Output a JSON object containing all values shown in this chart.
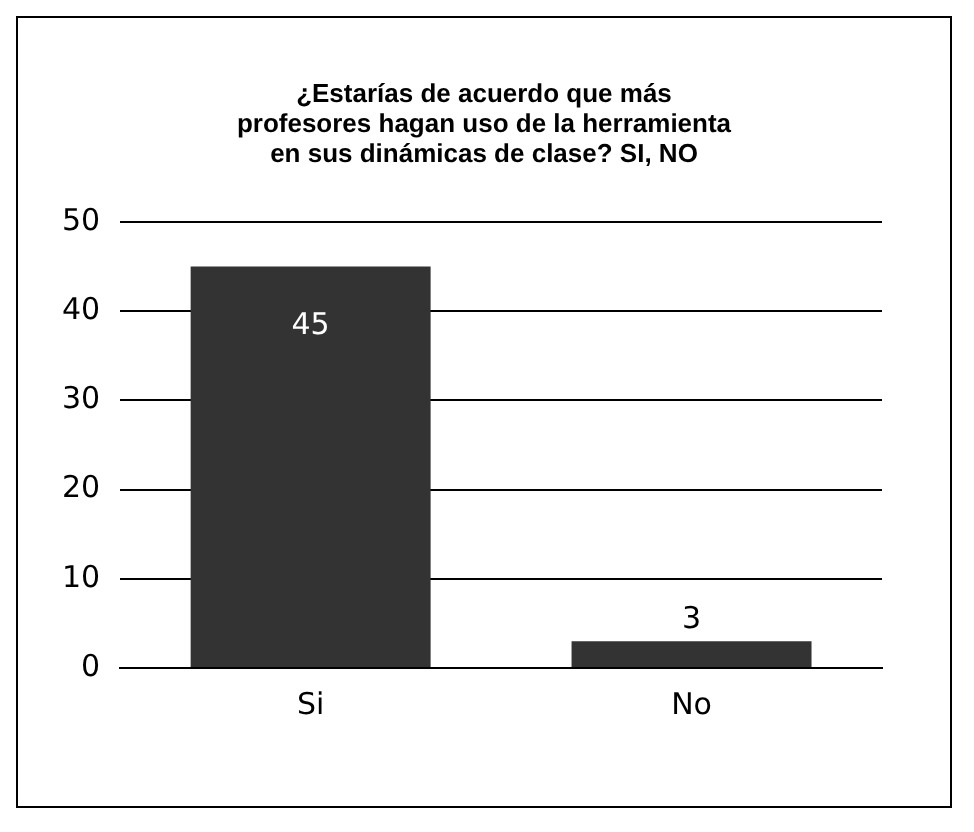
{
  "chart_data": {
    "type": "bar",
    "title": "¿Estarías de acuerdo que más profesores hagan uso de la herramienta en sus dinámicas de clase? SI, NO",
    "categories": [
      "Si",
      "No"
    ],
    "values": [
      45,
      3
    ],
    "color": "#333333",
    "ylim": [
      0,
      50
    ],
    "yticks": [
      0,
      10,
      20,
      30,
      40,
      50
    ],
    "grid": "y",
    "data_labels": true
  }
}
